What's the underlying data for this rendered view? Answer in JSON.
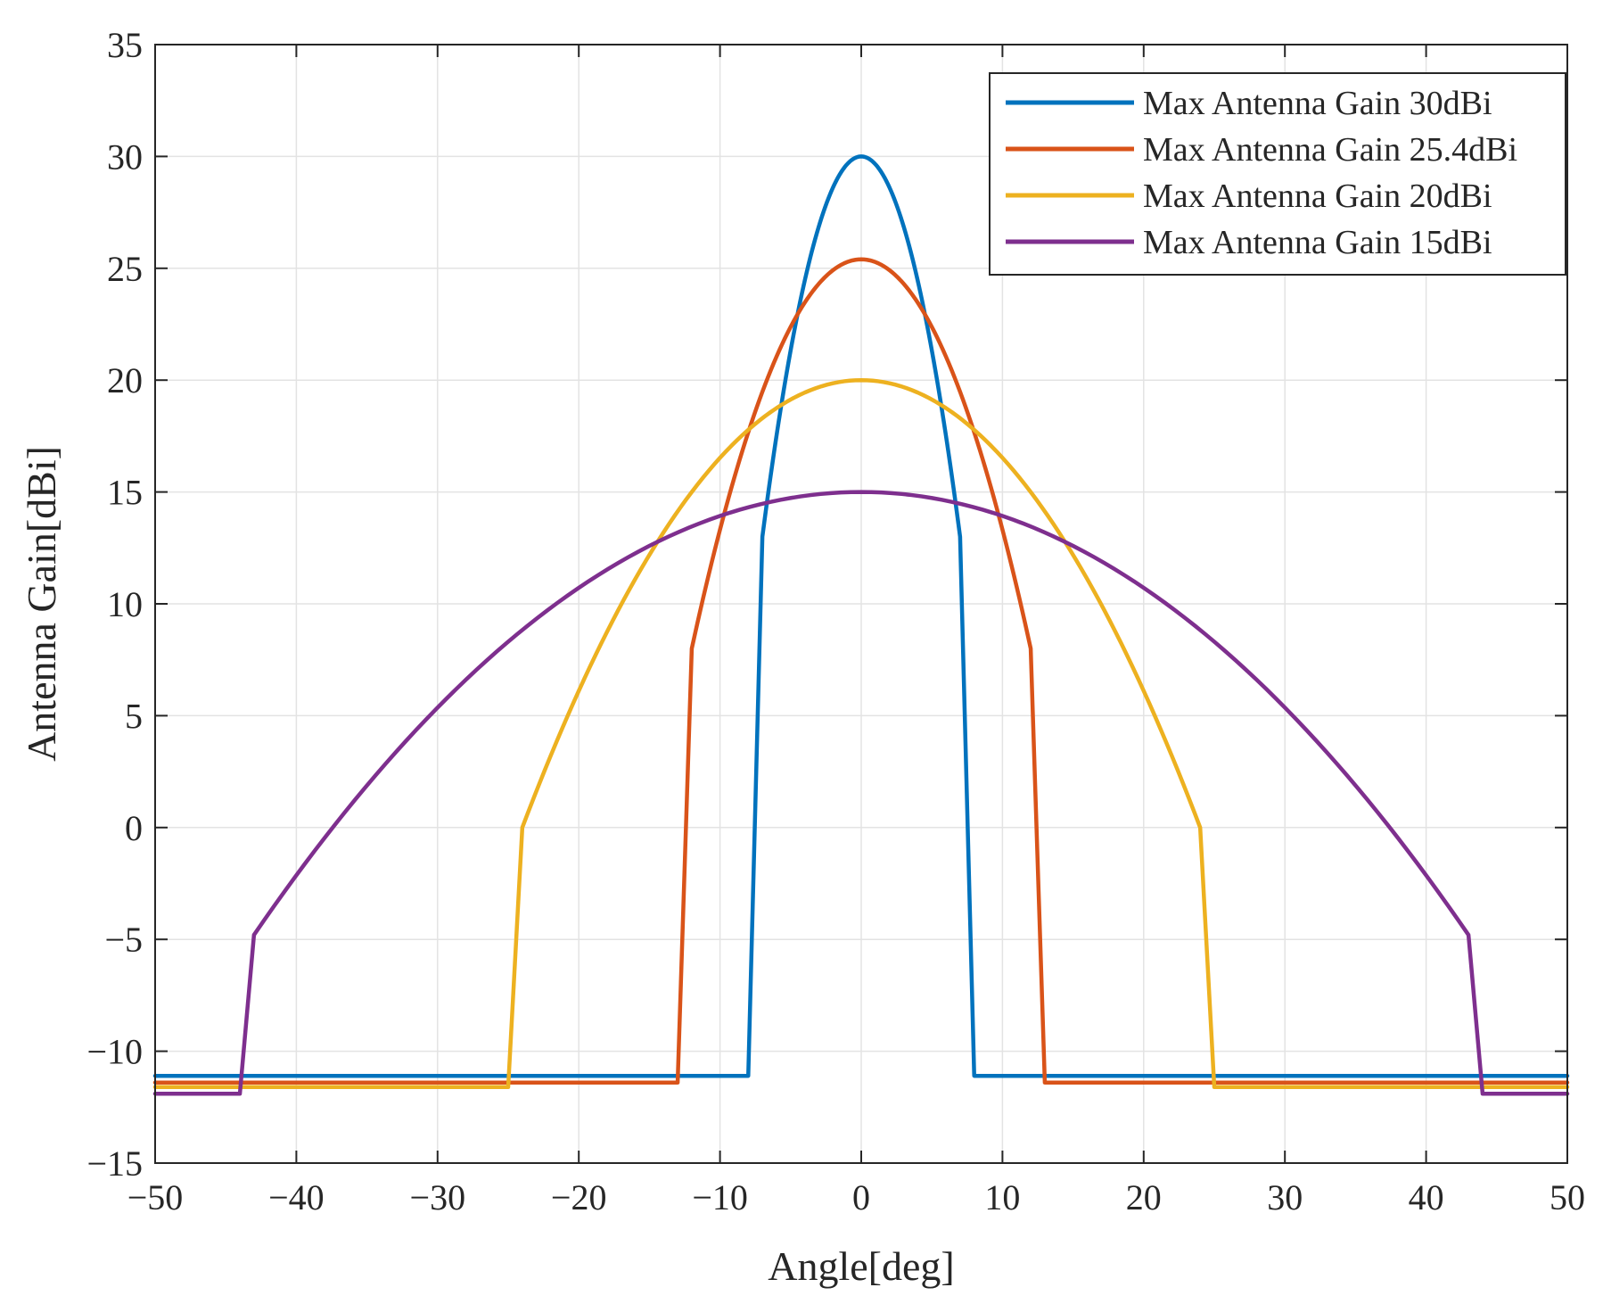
{
  "chart_data": {
    "type": "line",
    "title": "",
    "xlabel": "Angle[deg]",
    "ylabel": "Antenna Gain[dBi]",
    "xlim": [
      -50,
      50
    ],
    "ylim": [
      -15,
      35
    ],
    "xticks": [
      -50,
      -40,
      -30,
      -20,
      -10,
      0,
      10,
      20,
      30,
      40,
      50
    ],
    "yticks": [
      -15,
      -10,
      -5,
      0,
      5,
      10,
      15,
      20,
      25,
      30,
      35
    ],
    "xtick_labels": [
      "−50",
      "−40",
      "−30",
      "−20",
      "−10",
      "0",
      "10",
      "20",
      "30",
      "40",
      "50"
    ],
    "ytick_labels": [
      "−15",
      "−10",
      "−5",
      "0",
      "5",
      "10",
      "15",
      "20",
      "25",
      "30",
      "35"
    ],
    "grid": true,
    "legend_position": "top-right",
    "series": [
      {
        "name": "Max Antenna Gain 30dBi",
        "color": "#0072BD",
        "peak": 30,
        "x": [
          -50,
          -8,
          -7,
          -6,
          -5,
          -4,
          -3,
          -2,
          -1,
          0,
          1,
          2,
          3,
          4,
          5,
          6,
          7,
          8,
          50
        ],
        "values": [
          -11.1,
          -11.1,
          13,
          19.6,
          24.4,
          27.5,
          29.2,
          29.8,
          29.95,
          30,
          29.95,
          29.8,
          29.2,
          27.5,
          24.4,
          19.6,
          13,
          -11.1,
          -11.1
        ]
      },
      {
        "name": "Max Antenna Gain 25.4dBi",
        "color": "#D95319",
        "peak": 25.4,
        "x": [
          -50,
          -13,
          -12,
          -10,
          -8,
          -6,
          -4,
          -2,
          0,
          2,
          4,
          6,
          8,
          10,
          12,
          13,
          50
        ],
        "values": [
          -11.4,
          -11.4,
          8,
          13.4,
          18,
          21.4,
          23.9,
          25.1,
          25.4,
          25.1,
          23.9,
          21.4,
          18,
          13.4,
          8,
          -11.4,
          -11.4
        ]
      },
      {
        "name": "Max Antenna Gain 20dBi",
        "color": "#EDB120",
        "peak": 20,
        "x": [
          -50,
          -25,
          -24,
          -20,
          -16,
          -12,
          -8,
          -4,
          0,
          4,
          8,
          12,
          16,
          20,
          24,
          25,
          50
        ],
        "values": [
          -11.6,
          -11.6,
          0,
          6.1,
          11.1,
          15,
          17.8,
          19.4,
          20,
          19.4,
          17.8,
          15,
          11.1,
          6.1,
          0,
          -11.6,
          -11.6
        ]
      },
      {
        "name": "Max Antenna Gain 15dBi",
        "color": "#7E2F8E",
        "peak": 15,
        "x": [
          -50,
          -44,
          -43,
          -40,
          -35,
          -30,
          -25,
          -20,
          -15,
          -10,
          -5,
          0,
          5,
          10,
          15,
          20,
          25,
          30,
          35,
          40,
          43,
          44,
          50
        ],
        "values": [
          -11.9,
          -11.9,
          -4.8,
          -1.9,
          2.3,
          5.8,
          8.8,
          11.1,
          12.9,
          14.1,
          14.8,
          15,
          14.8,
          14.1,
          12.9,
          11.1,
          8.8,
          5.8,
          2.3,
          -1.9,
          -4.8,
          -11.9,
          -11.9
        ]
      }
    ]
  }
}
